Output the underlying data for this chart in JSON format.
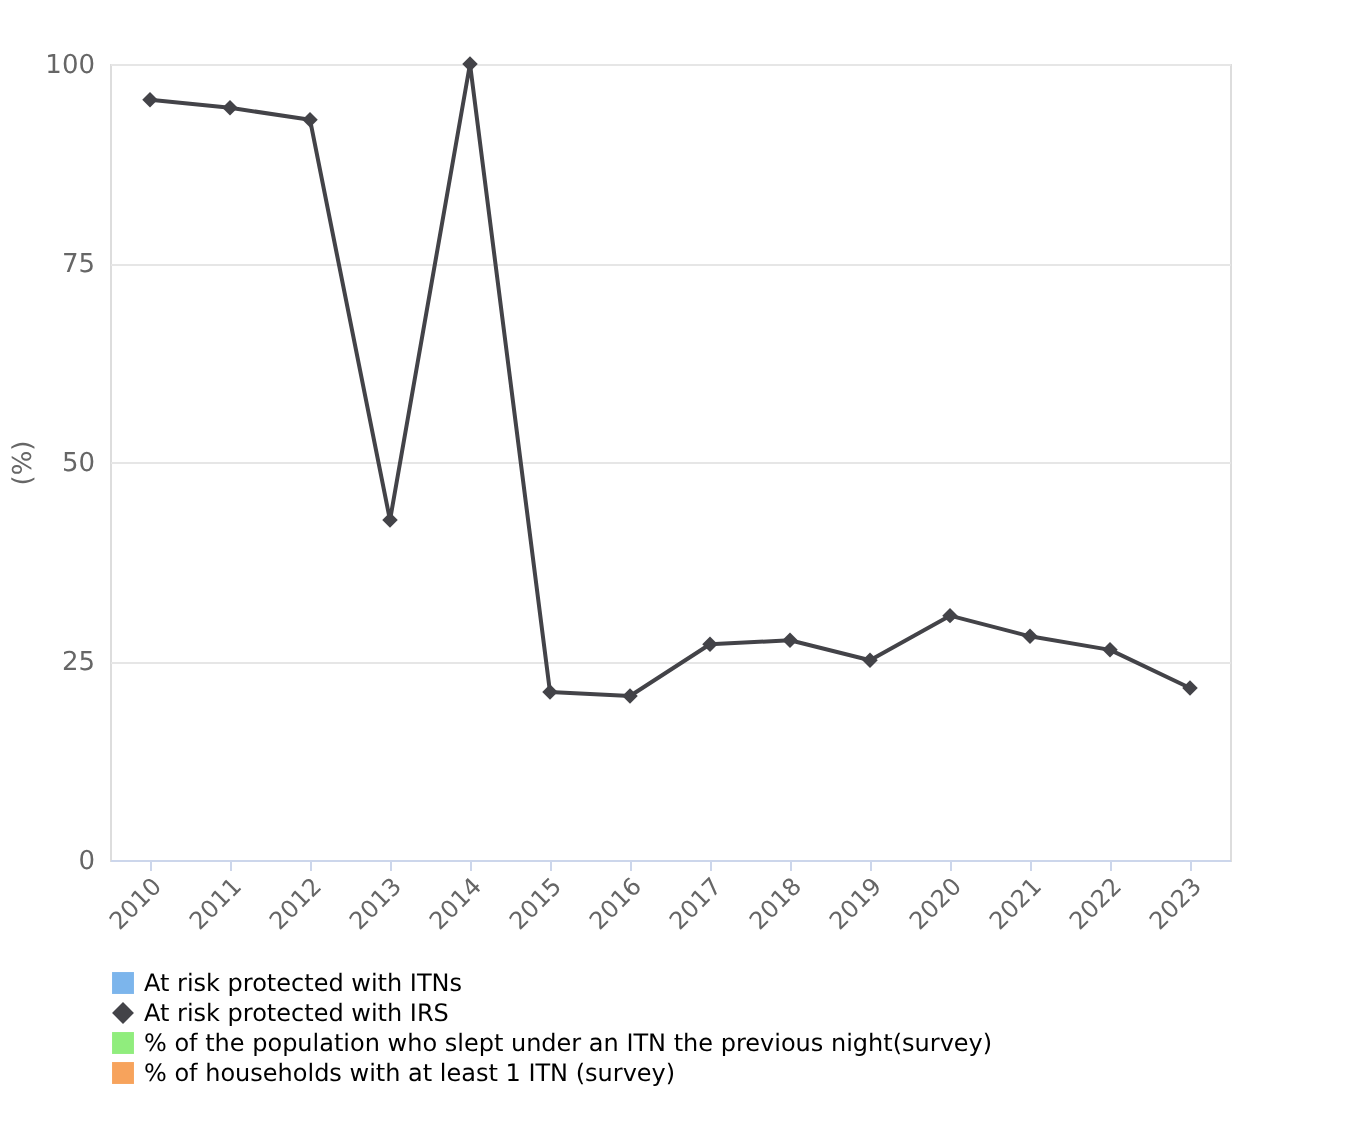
{
  "chart_data": {
    "type": "line",
    "ylabel": "(%)",
    "categories": [
      "2010",
      "2011",
      "2012",
      "2013",
      "2014",
      "2015",
      "2016",
      "2017",
      "2018",
      "2019",
      "2020",
      "2021",
      "2022",
      "2023"
    ],
    "ylim": [
      0,
      100
    ],
    "yticks": [
      0,
      25,
      50,
      75,
      100
    ],
    "grid": "y",
    "legend": "bottom",
    "marker": "diamond",
    "line_style": "solid",
    "series": [
      {
        "name": "At risk protected with ITNs",
        "color": "#7cb5ec",
        "type": "bar",
        "values": [
          null,
          null,
          null,
          null,
          null,
          null,
          null,
          null,
          null,
          null,
          null,
          null,
          null,
          null
        ]
      },
      {
        "name": "At risk protected with IRS",
        "color": "#434348",
        "values": [
          95.5,
          94.5,
          93,
          42.7,
          100,
          21.1,
          20.6,
          27.1,
          27.6,
          25.1,
          30.7,
          28.1,
          26.4,
          21.6
        ]
      },
      {
        "name": "% of the population who slept under an ITN the previous night(survey)",
        "color": "#90ed7d",
        "type": "bar",
        "values": [
          null,
          null,
          null,
          null,
          null,
          null,
          null,
          null,
          null,
          null,
          null,
          null,
          null,
          null
        ]
      },
      {
        "name": "% of households with at least 1 ITN (survey)",
        "color": "#f7a35c",
        "type": "bar",
        "values": [
          null,
          null,
          null,
          null,
          null,
          null,
          null,
          null,
          null,
          null,
          null,
          null,
          null,
          null
        ]
      }
    ]
  }
}
